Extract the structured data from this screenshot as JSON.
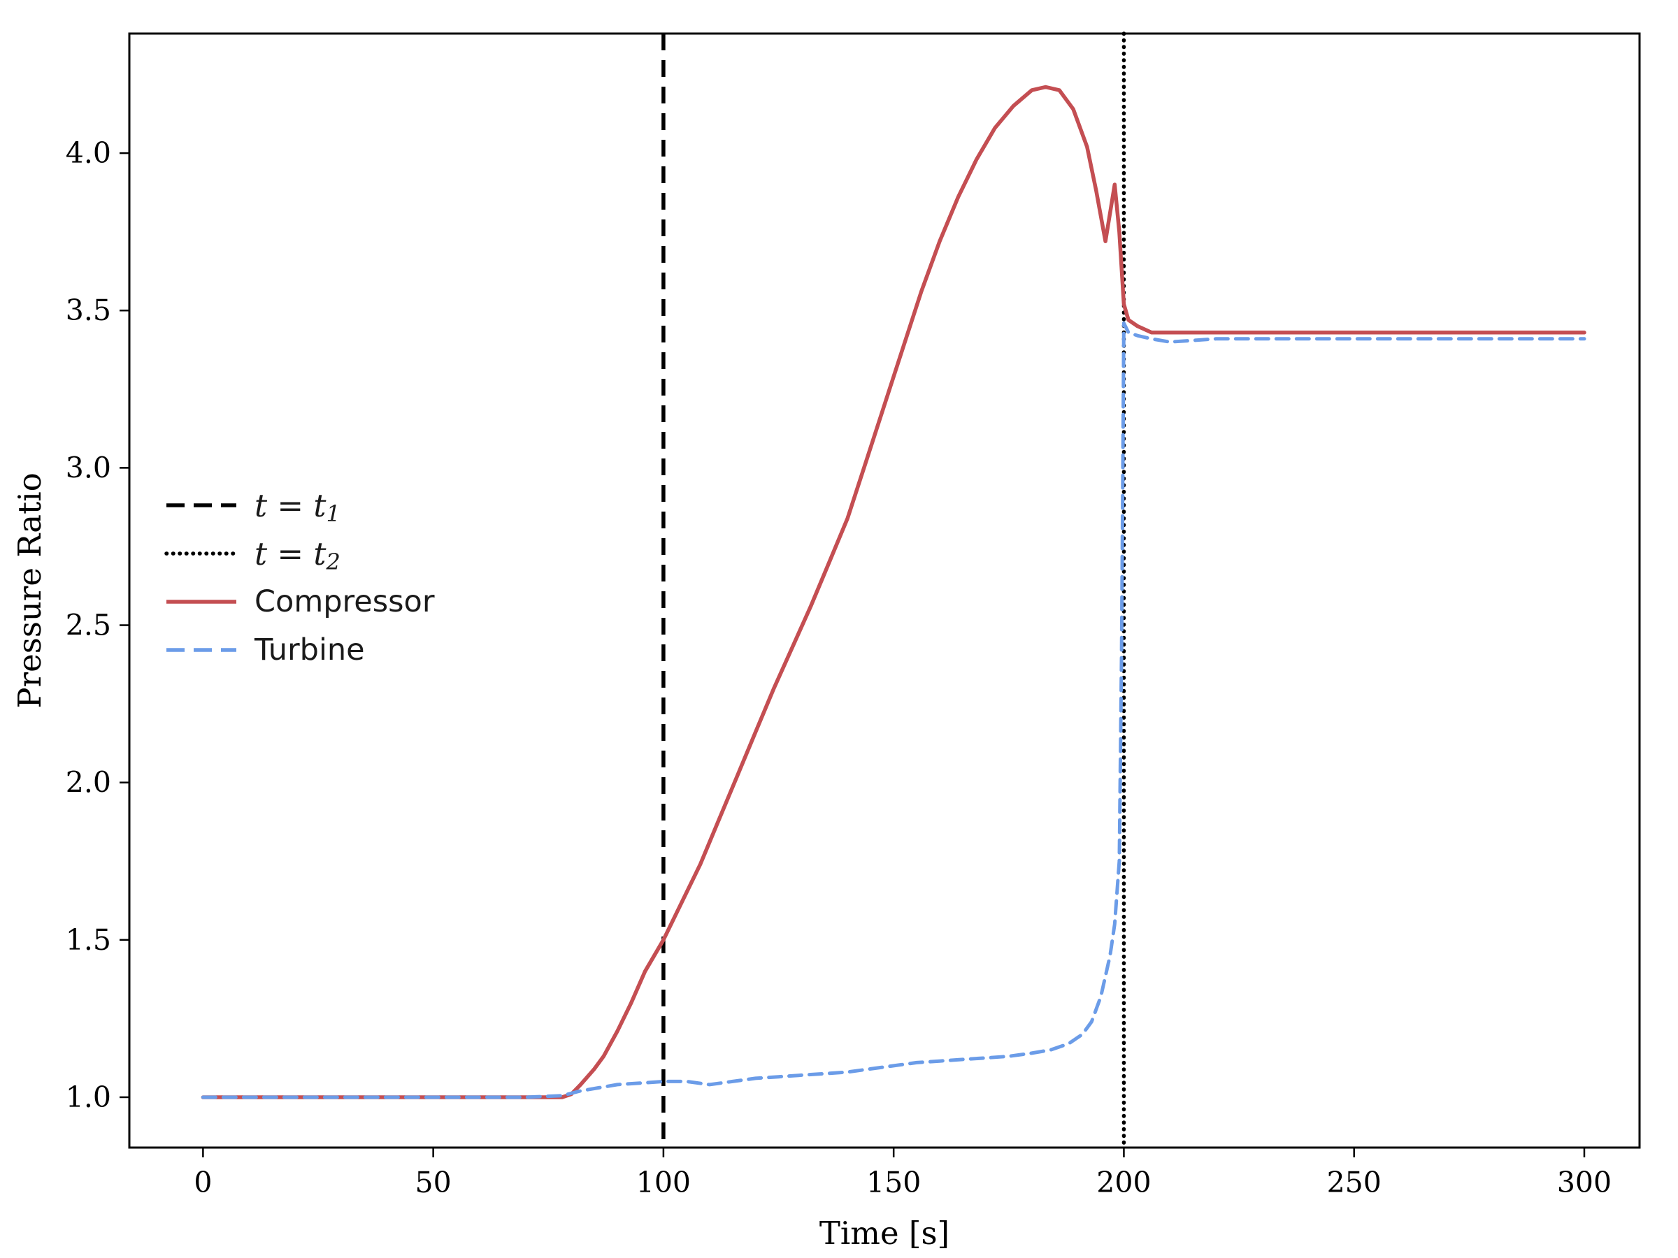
{
  "chart_data": {
    "type": "line",
    "title": "",
    "xlabel": "Time [s]",
    "ylabel": "Pressure Ratio",
    "xlim": [
      -16,
      312
    ],
    "ylim": [
      0.84,
      4.38
    ],
    "xticks": [
      0,
      50,
      100,
      150,
      200,
      250,
      300
    ],
    "yticks": [
      1.0,
      1.5,
      2.0,
      2.5,
      3.0,
      3.5,
      4.0
    ],
    "grid": false,
    "legend_position": "center-left",
    "vlines": [
      {
        "x": 100,
        "style": "dashed",
        "color": "#000000"
      },
      {
        "x": 200,
        "style": "dotted",
        "color": "#000000"
      }
    ],
    "series": [
      {
        "name": "Compressor",
        "color": "#c44e52",
        "style": "solid",
        "x": [
          0,
          5,
          10,
          15,
          20,
          25,
          30,
          35,
          40,
          45,
          50,
          55,
          60,
          65,
          70,
          75,
          78,
          80,
          82,
          85,
          87,
          90,
          93,
          96,
          100,
          104,
          108,
          112,
          116,
          120,
          124,
          128,
          132,
          136,
          140,
          144,
          148,
          152,
          156,
          160,
          164,
          168,
          172,
          176,
          180,
          183,
          186,
          189,
          192,
          194,
          196,
          198,
          199,
          200,
          201,
          203,
          206,
          210,
          220,
          240,
          260,
          280,
          300
        ],
        "y": [
          1.0,
          1.0,
          1.0,
          1.0,
          1.0,
          1.0,
          1.0,
          1.0,
          1.0,
          1.0,
          1.0,
          1.0,
          1.0,
          1.0,
          1.0,
          1.0,
          1.0,
          1.01,
          1.04,
          1.09,
          1.13,
          1.21,
          1.3,
          1.4,
          1.5,
          1.62,
          1.74,
          1.88,
          2.02,
          2.16,
          2.3,
          2.43,
          2.56,
          2.7,
          2.84,
          3.02,
          3.2,
          3.38,
          3.56,
          3.72,
          3.86,
          3.98,
          4.08,
          4.15,
          4.2,
          4.21,
          4.2,
          4.14,
          4.02,
          3.88,
          3.72,
          3.9,
          3.75,
          3.52,
          3.47,
          3.45,
          3.43,
          3.43,
          3.43,
          3.43,
          3.43,
          3.43,
          3.43
        ]
      },
      {
        "name": "Turbine",
        "color": "#6b9ce8",
        "style": "dashed",
        "x": [
          0,
          10,
          20,
          30,
          40,
          50,
          60,
          70,
          78,
          82,
          86,
          90,
          95,
          100,
          105,
          110,
          115,
          120,
          125,
          130,
          135,
          140,
          145,
          150,
          155,
          160,
          165,
          170,
          175,
          180,
          184,
          188,
          191,
          193,
          195,
          197,
          198,
          199,
          199.5,
          200,
          201,
          203,
          206,
          210,
          220,
          240,
          260,
          280,
          300
        ],
        "y": [
          1.0,
          1.0,
          1.0,
          1.0,
          1.0,
          1.0,
          1.0,
          1.0,
          1.005,
          1.02,
          1.03,
          1.04,
          1.045,
          1.05,
          1.05,
          1.04,
          1.05,
          1.06,
          1.065,
          1.07,
          1.075,
          1.08,
          1.09,
          1.1,
          1.11,
          1.115,
          1.12,
          1.125,
          1.13,
          1.14,
          1.15,
          1.17,
          1.2,
          1.24,
          1.32,
          1.45,
          1.55,
          1.75,
          2.4,
          3.46,
          3.43,
          3.42,
          3.41,
          3.4,
          3.41,
          3.41,
          3.41,
          3.41,
          3.41
        ]
      }
    ],
    "legend": {
      "entries": [
        {
          "style": "dashed",
          "color": "#000000",
          "math": true,
          "prefix": "t = t",
          "sub": "1"
        },
        {
          "style": "dotted",
          "color": "#000000",
          "math": true,
          "prefix": "t = t",
          "sub": "2"
        },
        {
          "style": "solid",
          "color": "#c44e52",
          "label": "Compressor"
        },
        {
          "style": "dashed",
          "color": "#6b9ce8",
          "label": "Turbine"
        }
      ]
    }
  }
}
